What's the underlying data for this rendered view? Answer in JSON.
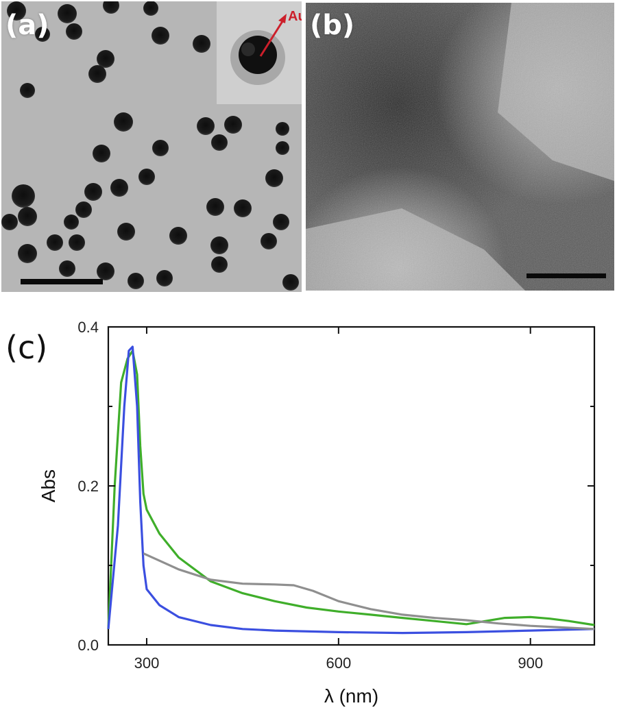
{
  "figure": {
    "panels": [
      {
        "id": "a",
        "label": "(a)",
        "type": "TEM micrograph",
        "inset_annotation": "Au"
      },
      {
        "id": "b",
        "label": "(b)",
        "type": "TEM micrograph"
      },
      {
        "id": "c",
        "label": "(c)"
      }
    ]
  },
  "chart_data": {
    "type": "line",
    "xlabel": "λ (nm)",
    "ylabel": "Abs",
    "xlim": [
      240,
      1000
    ],
    "ylim": [
      0,
      0.4
    ],
    "xticks": [
      300,
      600,
      900
    ],
    "yticks": [
      0.0,
      0.2,
      0.4
    ],
    "ytick_labels": [
      "0.0",
      "0.2",
      "0.4"
    ],
    "grid": false,
    "legend": false,
    "series": [
      {
        "color": "#3fae2a",
        "x": [
          240,
          250,
          260,
          270,
          278,
          285,
          290,
          295,
          300,
          320,
          350,
          400,
          450,
          500,
          550,
          600,
          650,
          700,
          750,
          800,
          830,
          860,
          900,
          930,
          960,
          1000
        ],
        "y": [
          0.02,
          0.2,
          0.33,
          0.36,
          0.37,
          0.34,
          0.25,
          0.19,
          0.17,
          0.14,
          0.11,
          0.08,
          0.065,
          0.055,
          0.047,
          0.042,
          0.038,
          0.034,
          0.03,
          0.026,
          0.03,
          0.034,
          0.035,
          0.033,
          0.03,
          0.025
        ]
      },
      {
        "color": "#3b4fe0",
        "x": [
          240,
          255,
          265,
          272,
          278,
          285,
          290,
          295,
          300,
          320,
          350,
          400,
          450,
          500,
          600,
          700,
          800,
          900,
          1000
        ],
        "y": [
          0.02,
          0.15,
          0.3,
          0.37,
          0.375,
          0.3,
          0.18,
          0.1,
          0.07,
          0.05,
          0.035,
          0.025,
          0.02,
          0.018,
          0.016,
          0.015,
          0.016,
          0.018,
          0.02
        ]
      },
      {
        "color": "#8f8f8f",
        "x": [
          295,
          350,
          400,
          450,
          500,
          530,
          560,
          600,
          650,
          700,
          750,
          800,
          850,
          900,
          950,
          1000
        ],
        "y": [
          0.115,
          0.095,
          0.082,
          0.077,
          0.076,
          0.075,
          0.068,
          0.055,
          0.045,
          0.038,
          0.034,
          0.031,
          0.027,
          0.024,
          0.022,
          0.02
        ]
      }
    ]
  },
  "colors": {
    "annotation_red": "#cc1f2b",
    "panel_a_bg": "#b9b9b9",
    "particle": "#141414"
  }
}
